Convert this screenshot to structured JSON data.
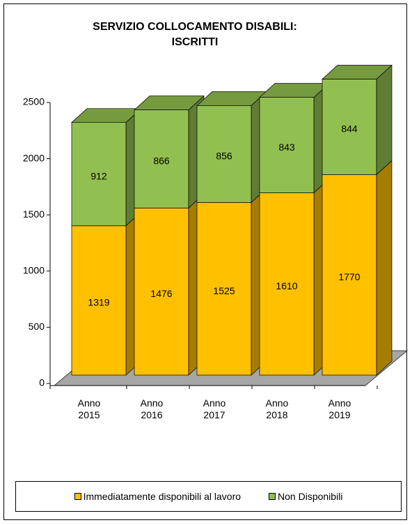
{
  "chart_data": {
    "type": "bar3d_stacked",
    "title": "SERVIZIO COLLOCAMENTO DISABILI: ISCRITTI",
    "categories": [
      "Anno 2015",
      "Anno 2016",
      "Anno 2017",
      "Anno 2018",
      "Anno 2019"
    ],
    "series": [
      {
        "name": "Immediatamente disponibili al lavoro",
        "color": "#FFC000",
        "values": [
          1319,
          1476,
          1525,
          1610,
          1770
        ]
      },
      {
        "name": "Non Disponibili",
        "color": "#92C050",
        "values": [
          912,
          866,
          856,
          843,
          844
        ]
      }
    ],
    "ylim": [
      0,
      2500
    ],
    "yticks": [
      0,
      500,
      1000,
      1500,
      2000,
      2500
    ],
    "legend": "bottom"
  }
}
